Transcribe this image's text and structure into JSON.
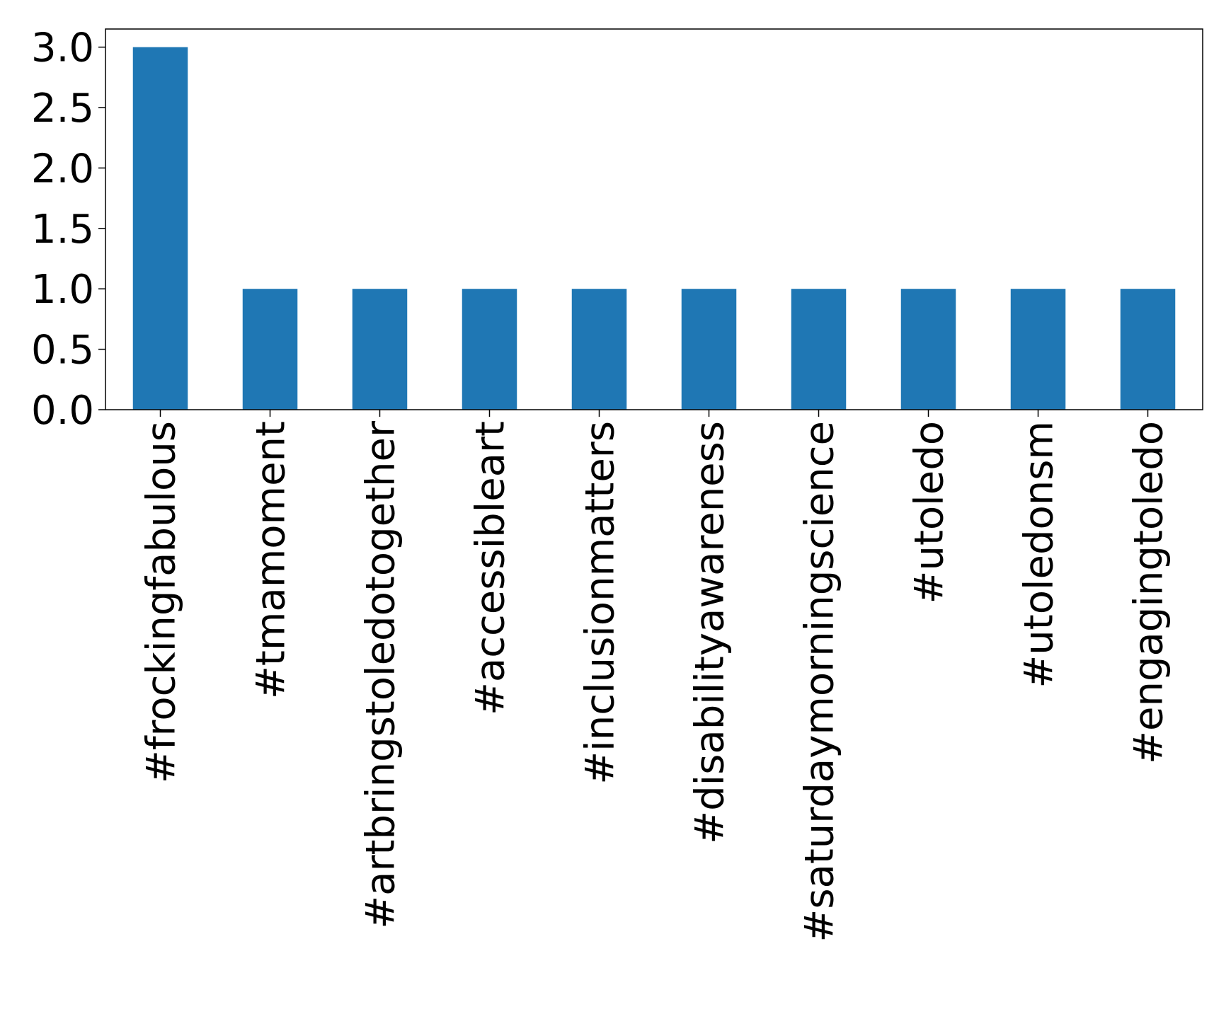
{
  "chart_data": {
    "type": "bar",
    "categories": [
      "#frockingfabulous",
      "#tmamoment",
      "#artbringstoledotogether",
      "#accessibleart",
      "#inclusionmatters",
      "#disabilityawareness",
      "#saturdaymorningscience",
      "#utoledo",
      "#utoledonsm",
      "#engagingtoledo"
    ],
    "values": [
      3,
      1,
      1,
      1,
      1,
      1,
      1,
      1,
      1,
      1
    ],
    "color": "#1f77b4",
    "ylim": [
      0,
      3.15
    ],
    "yticks": [
      {
        "value": 0,
        "label": "0.0"
      },
      0.5,
      {
        "value": 1,
        "label": "1.0"
      },
      1.5,
      {
        "value": 2,
        "label": "2.0"
      },
      2.5,
      {
        "value": 3,
        "label": "3.0"
      }
    ],
    "grid": false
  }
}
